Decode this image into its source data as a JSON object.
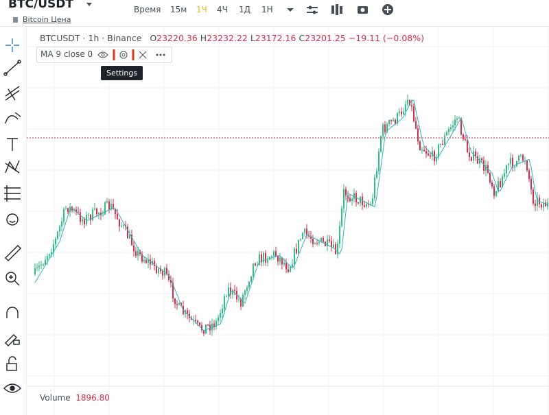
{
  "header": {
    "symbol": "BTC/USDT",
    "subtitle": "Bitcoin Цена"
  },
  "toolbar": {
    "intervals": [
      "Время",
      "15м",
      "1Ч",
      "4Ч",
      "1Д",
      "1Н"
    ]
  },
  "legend": {
    "title": "BTCUSDT · 1h · Binance",
    "open_label": "O",
    "open": "23220.36",
    "high_label": "H",
    "high": "23232.22",
    "low_label": "L",
    "low": "23172.16",
    "close_label": "C",
    "close": "23201.25",
    "change": "−19.11 (−0.08%)"
  },
  "indicator": {
    "label": "MA 9 close 0",
    "tooltip": "Settings"
  },
  "volume": {
    "label": "Volume",
    "value": "1896.80"
  }
}
